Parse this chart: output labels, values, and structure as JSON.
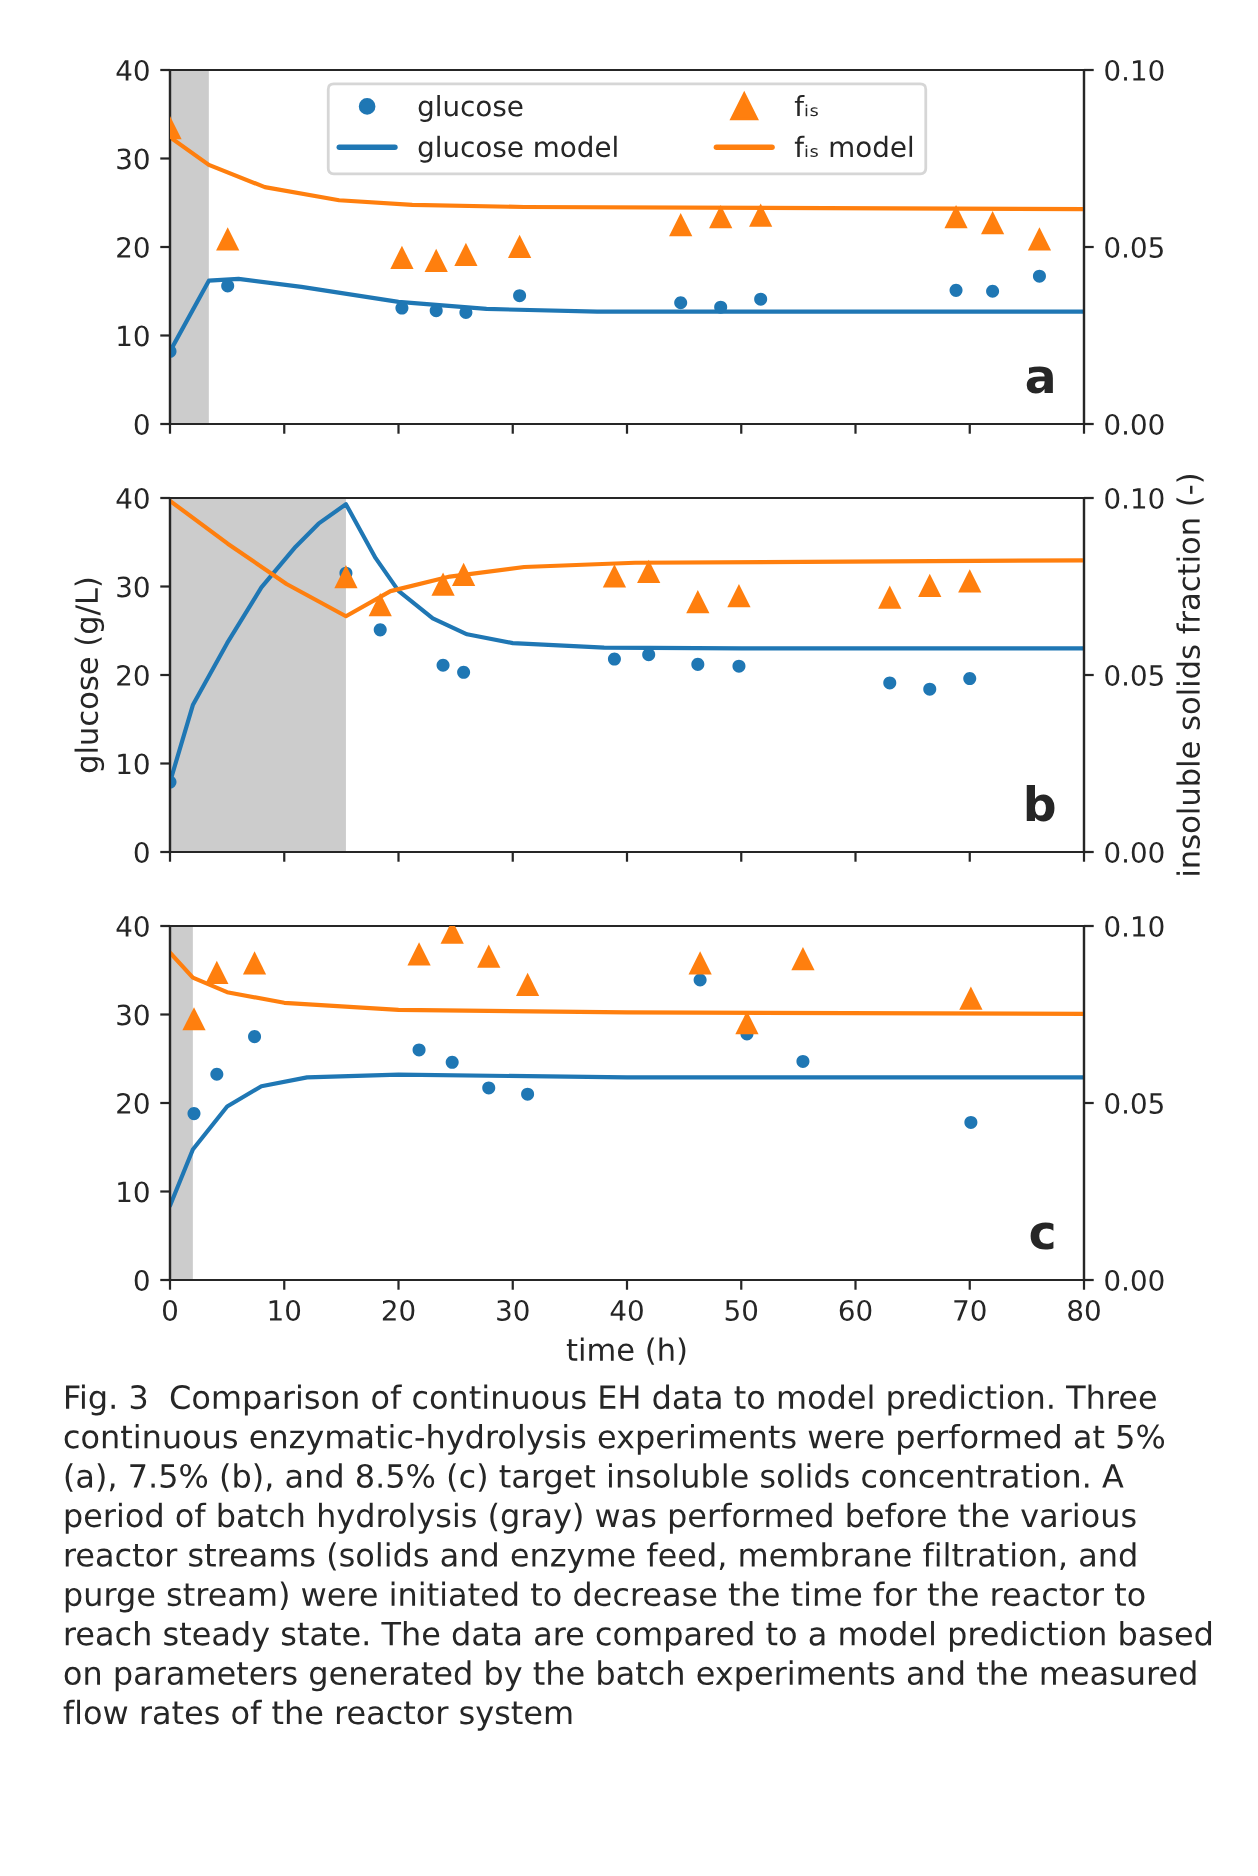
{
  "chart_data": [
    {
      "type": "scatter",
      "xlim": [
        0,
        80
      ],
      "xticks": [
        0,
        10,
        20,
        30,
        40,
        50,
        60,
        70,
        80
      ],
      "ylim": [
        0,
        40
      ],
      "yticks": [
        0,
        10,
        20,
        30,
        40
      ],
      "y2lim": [
        0,
        0.1
      ],
      "y2ticks": [
        {
          "value": 0,
          "label": "0.00"
        },
        {
          "value": 0.05,
          "label": "0.05"
        },
        {
          "value": 0.1,
          "label": "0.10"
        }
      ],
      "tick_labels": "y",
      "legend": "top",
      "grid": false,
      "bands": [
        {
          "axis": "x",
          "from": 0,
          "to": 3.4,
          "color": "#cccccc"
        }
      ],
      "annotations": [
        "a"
      ],
      "series": [
        {
          "name": "glucose",
          "type": "scatter",
          "marker": "circle",
          "color": "#1f77b4",
          "x": [
            0,
            5.05,
            20.3,
            23.3,
            25.9,
            30.6,
            44.7,
            48.2,
            51.7,
            68.8,
            72.0,
            76.1
          ],
          "values": [
            8.2,
            15.6,
            13.1,
            12.8,
            12.6,
            14.5,
            13.7,
            13.2,
            14.1,
            15.1,
            15.0,
            16.7
          ]
        },
        {
          "name": "glucose model",
          "type": "line",
          "color": "#1f77b4",
          "x": [
            0,
            3.4,
            6,
            11.5,
            20,
            27.7,
            37.4,
            80
          ],
          "values": [
            8.2,
            16.2,
            16.4,
            15.5,
            13.8,
            13.0,
            12.7,
            12.7
          ]
        },
        {
          "name": "fᵢₛ",
          "type": "scatter",
          "marker": "triangle",
          "axis": "y2",
          "color": "#ff7f0e",
          "x": [
            0,
            5.05,
            20.3,
            23.3,
            25.9,
            30.6,
            44.7,
            48.2,
            51.7,
            68.8,
            72.0,
            76.1
          ],
          "values": [
            0.0837,
            0.0523,
            0.0471,
            0.0462,
            0.0479,
            0.0502,
            0.0563,
            0.0586,
            0.059,
            0.0586,
            0.0569,
            0.0523
          ]
        },
        {
          "name": "fᵢₛ model",
          "type": "line",
          "axis": "y2",
          "color": "#ff7f0e",
          "x": [
            0,
            3.4,
            8.3,
            14.8,
            21.2,
            31,
            80
          ],
          "values": [
            0.081,
            0.0732,
            0.0669,
            0.0632,
            0.0619,
            0.0613,
            0.0607
          ]
        }
      ]
    },
    {
      "type": "scatter",
      "xlim": [
        0,
        80
      ],
      "xticks": [
        0,
        10,
        20,
        30,
        40,
        50,
        60,
        70,
        80
      ],
      "ylim": [
        0,
        40
      ],
      "yticks": [
        0,
        10,
        20,
        30,
        40
      ],
      "y2lim": [
        0,
        0.1
      ],
      "y2ticks": [
        {
          "value": 0,
          "label": "0.00"
        },
        {
          "value": 0.05,
          "label": "0.05"
        },
        {
          "value": 0.1,
          "label": "0.10"
        }
      ],
      "tick_labels": "y",
      "grid": false,
      "ylabel": "glucose (g/L)",
      "y2label": "insoluble solids fraction (-)",
      "bands": [
        {
          "axis": "x",
          "from": 0,
          "to": 15.4,
          "color": "#cccccc"
        }
      ],
      "annotations": [
        "b"
      ],
      "series": [
        {
          "type": "scatter",
          "marker": "circle",
          "color": "#1f77b4",
          "x": [
            0,
            15.4,
            18.4,
            23.9,
            25.7,
            38.9,
            41.9,
            46.2,
            49.8,
            63.0,
            66.5,
            70.0
          ],
          "values": [
            7.9,
            31.5,
            25.1,
            21.1,
            20.3,
            21.8,
            22.3,
            21.2,
            21.0,
            19.1,
            18.4,
            19.6
          ]
        },
        {
          "type": "line",
          "color": "#1f77b4",
          "x": [
            0,
            2,
            5,
            8,
            11,
            13,
            15.4,
            18,
            20,
            23,
            26,
            30,
            38,
            50,
            80
          ],
          "values": [
            7.9,
            16.6,
            23.6,
            29.9,
            34.5,
            37.1,
            39.3,
            33.2,
            29.5,
            26.4,
            24.6,
            23.6,
            23.1,
            23.0,
            23.0
          ]
        },
        {
          "type": "scatter",
          "marker": "triangle",
          "axis": "y2",
          "color": "#ff7f0e",
          "x": [
            15.4,
            18.4,
            23.9,
            25.7,
            38.9,
            41.9,
            46.2,
            49.8,
            63.0,
            66.5,
            70.0
          ],
          "values": [
            0.0778,
            0.0699,
            0.0757,
            0.0784,
            0.078,
            0.0793,
            0.0707,
            0.0724,
            0.072,
            0.0753,
            0.0766
          ]
        },
        {
          "type": "line",
          "axis": "y2",
          "color": "#ff7f0e",
          "x": [
            0,
            5.05,
            10.2,
            15.4,
            19.3,
            24.5,
            31,
            40.7,
            80
          ],
          "values": [
            0.0992,
            0.0871,
            0.0757,
            0.0666,
            0.0737,
            0.0778,
            0.0805,
            0.0817,
            0.0824
          ]
        }
      ]
    },
    {
      "type": "scatter",
      "xlim": [
        0,
        80
      ],
      "xticks": [
        0,
        10,
        20,
        30,
        40,
        50,
        60,
        70,
        80
      ],
      "ylim": [
        0,
        40
      ],
      "yticks": [
        0,
        10,
        20,
        30,
        40
      ],
      "y2lim": [
        0,
        0.1
      ],
      "y2ticks": [
        {
          "value": 0,
          "label": "0.00"
        },
        {
          "value": 0.05,
          "label": "0.05"
        },
        {
          "value": 0.1,
          "label": "0.10"
        }
      ],
      "grid": false,
      "xlabel": "time (h)",
      "bands": [
        {
          "axis": "x",
          "from": 0,
          "to": 2,
          "color": "#cccccc"
        }
      ],
      "annotations": [
        "c",
        "Fig. 3  Comparison of continuous EH data to model prediction. Three continuous enzymatic-hydrolysis experiments were performed at 5% (a), 7.5% (b), and 8.5% (c) target insoluble solids concentration. A period of batch hydrolysis (gray) was performed before the various reactor streams (solids and enzyme feed, membrane filtration, and purge stream) were initiated to decrease the time for the reactor to reach steady state. The data are compared to a model prediction based on parameters generated by the batch experiments and the measured flow rates of the reactor system"
      ],
      "series": [
        {
          "type": "scatter",
          "marker": "circle",
          "color": "#1f77b4",
          "x": [
            2.1,
            4.1,
            7.4,
            21.8,
            24.7,
            27.9,
            31.3,
            46.4,
            50.5,
            55.4,
            70.1
          ],
          "values": [
            18.8,
            23.25,
            27.5,
            26.0,
            24.6,
            21.7,
            21.0,
            33.9,
            27.8,
            24.7,
            17.8
          ]
        },
        {
          "type": "line",
          "color": "#1f77b4",
          "x": [
            0,
            2,
            5,
            8,
            12,
            20,
            40,
            80
          ],
          "values": [
            8.4,
            14.75,
            19.6,
            21.9,
            22.9,
            23.2,
            22.9,
            22.9
          ]
        },
        {
          "type": "scatter",
          "marker": "triangle",
          "axis": "y2",
          "color": "#ff7f0e",
          "x": [
            2.1,
            4.1,
            7.4,
            21.8,
            24.7,
            27.9,
            31.3,
            46.4,
            50.5,
            55.4,
            70.1
          ],
          "values": [
            0.0738,
            0.0869,
            0.0896,
            0.0921,
            0.0983,
            0.0915,
            0.0835,
            0.0896,
            0.0727,
            0.0908,
            0.0796
          ]
        },
        {
          "type": "line",
          "axis": "y2",
          "color": "#ff7f0e",
          "x": [
            0,
            2,
            5,
            10,
            20,
            40,
            80
          ],
          "values": [
            0.0925,
            0.0854,
            0.0813,
            0.0783,
            0.0763,
            0.0756,
            0.0752
          ]
        }
      ]
    }
  ]
}
